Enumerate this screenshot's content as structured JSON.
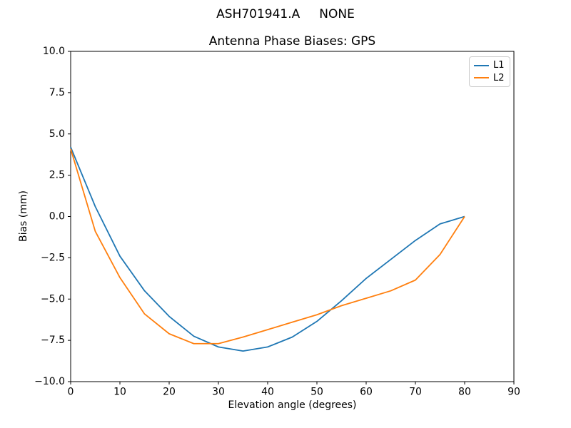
{
  "figure": {
    "suptitle": "ASH701941.A     NONE",
    "background_color": "#ffffff",
    "text_color": "#000000"
  },
  "chart_data": {
    "type": "line",
    "title": "Antenna Phase Biases: GPS",
    "xlabel": "Elevation angle (degrees)",
    "ylabel": "Bias (mm)",
    "xlim": [
      0,
      90
    ],
    "ylim": [
      -10,
      10
    ],
    "xticks": [
      0,
      10,
      20,
      30,
      40,
      50,
      60,
      70,
      80,
      90
    ],
    "xtick_labels": [
      "0",
      "10",
      "20",
      "30",
      "40",
      "50",
      "60",
      "70",
      "80",
      "90"
    ],
    "yticks": [
      10,
      7.5,
      5,
      2.5,
      0,
      -2.5,
      -5,
      -7.5,
      -10
    ],
    "ytick_labels": [
      "10.0",
      "7.5",
      "5.0",
      "2.5",
      "0.0",
      "−2.5",
      "−5.0",
      "−7.5",
      "−10.0"
    ],
    "grid": false,
    "legend_position": "upper right",
    "x": [
      0,
      5,
      10,
      15,
      20,
      25,
      30,
      35,
      40,
      45,
      50,
      55,
      60,
      65,
      70,
      75,
      80
    ],
    "series": [
      {
        "name": "L1",
        "color": "#1f77b4",
        "values": [
          4.2,
          0.6,
          -2.4,
          -4.5,
          -6.05,
          -7.25,
          -7.9,
          -8.15,
          -7.9,
          -7.3,
          -6.35,
          -5.1,
          -3.75,
          -2.6,
          -1.45,
          -0.45,
          0.0
        ]
      },
      {
        "name": "L2",
        "color": "#ff7f0e",
        "values": [
          4.1,
          -0.9,
          -3.7,
          -5.9,
          -7.1,
          -7.7,
          -7.7,
          -7.3,
          -6.85,
          -6.4,
          -5.95,
          -5.4,
          -4.95,
          -4.5,
          -3.85,
          -2.3,
          0.0
        ]
      }
    ]
  }
}
